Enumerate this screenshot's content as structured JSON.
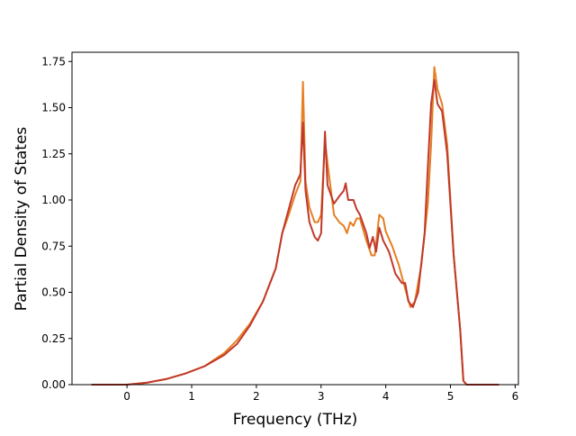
{
  "chart_data": {
    "type": "line",
    "title": "",
    "xlabel": "Frequency (THz)",
    "ylabel": "Partial Density of States",
    "xlim": [
      -0.85,
      6.05
    ],
    "ylim": [
      0,
      1.8
    ],
    "xticks": [
      0,
      1,
      2,
      3,
      4,
      5,
      6
    ],
    "xtick_labels": [
      "0",
      "1",
      "2",
      "3",
      "4",
      "5",
      "6"
    ],
    "yticks": [
      0,
      0.25,
      0.5,
      0.75,
      1.0,
      1.25,
      1.5,
      1.75
    ],
    "ytick_labels": [
      "0.00",
      "0.25",
      "0.50",
      "0.75",
      "1.00",
      "1.25",
      "1.50",
      "1.75"
    ],
    "grid": false,
    "legend": "none",
    "series": [
      {
        "color": "#e67e22",
        "points": [
          [
            -0.55,
            0
          ],
          [
            0,
            0
          ],
          [
            0.3,
            0.01
          ],
          [
            0.6,
            0.03
          ],
          [
            0.9,
            0.06
          ],
          [
            1.2,
            0.1
          ],
          [
            1.5,
            0.17
          ],
          [
            1.7,
            0.24
          ],
          [
            1.9,
            0.33
          ],
          [
            2.1,
            0.45
          ],
          [
            2.3,
            0.63
          ],
          [
            2.4,
            0.82
          ],
          [
            2.5,
            0.92
          ],
          [
            2.6,
            1.03
          ],
          [
            2.68,
            1.1
          ],
          [
            2.72,
            1.64
          ],
          [
            2.76,
            1.1
          ],
          [
            2.82,
            0.96
          ],
          [
            2.9,
            0.88
          ],
          [
            2.95,
            0.88
          ],
          [
            3.0,
            0.92
          ],
          [
            3.06,
            1.32
          ],
          [
            3.1,
            1.2
          ],
          [
            3.2,
            0.92
          ],
          [
            3.28,
            0.88
          ],
          [
            3.35,
            0.86
          ],
          [
            3.4,
            0.82
          ],
          [
            3.45,
            0.88
          ],
          [
            3.5,
            0.86
          ],
          [
            3.55,
            0.9
          ],
          [
            3.6,
            0.9
          ],
          [
            3.7,
            0.78
          ],
          [
            3.78,
            0.7
          ],
          [
            3.83,
            0.7
          ],
          [
            3.9,
            0.92
          ],
          [
            3.96,
            0.9
          ],
          [
            4.0,
            0.83
          ],
          [
            4.1,
            0.75
          ],
          [
            4.2,
            0.65
          ],
          [
            4.3,
            0.52
          ],
          [
            4.38,
            0.42
          ],
          [
            4.45,
            0.45
          ],
          [
            4.55,
            0.65
          ],
          [
            4.65,
            0.98
          ],
          [
            4.7,
            1.3
          ],
          [
            4.75,
            1.72
          ],
          [
            4.8,
            1.6
          ],
          [
            4.87,
            1.52
          ],
          [
            4.95,
            1.3
          ],
          [
            5.05,
            0.7
          ],
          [
            5.15,
            0.3
          ],
          [
            5.2,
            0.02
          ],
          [
            5.25,
            0
          ],
          [
            5.75,
            0
          ]
        ]
      },
      {
        "color": "#c0392b",
        "points": [
          [
            -0.55,
            0
          ],
          [
            0,
            0
          ],
          [
            0.3,
            0.01
          ],
          [
            0.6,
            0.03
          ],
          [
            0.9,
            0.06
          ],
          [
            1.2,
            0.1
          ],
          [
            1.5,
            0.16
          ],
          [
            1.7,
            0.22
          ],
          [
            1.9,
            0.32
          ],
          [
            2.1,
            0.45
          ],
          [
            2.3,
            0.63
          ],
          [
            2.4,
            0.82
          ],
          [
            2.5,
            0.95
          ],
          [
            2.6,
            1.08
          ],
          [
            2.68,
            1.14
          ],
          [
            2.72,
            1.42
          ],
          [
            2.76,
            1.05
          ],
          [
            2.82,
            0.88
          ],
          [
            2.9,
            0.8
          ],
          [
            2.95,
            0.78
          ],
          [
            3.0,
            0.82
          ],
          [
            3.06,
            1.37
          ],
          [
            3.1,
            1.08
          ],
          [
            3.2,
            0.98
          ],
          [
            3.28,
            1.02
          ],
          [
            3.35,
            1.05
          ],
          [
            3.38,
            1.09
          ],
          [
            3.42,
            1.0
          ],
          [
            3.5,
            1.0
          ],
          [
            3.55,
            0.95
          ],
          [
            3.6,
            0.92
          ],
          [
            3.7,
            0.82
          ],
          [
            3.75,
            0.74
          ],
          [
            3.8,
            0.8
          ],
          [
            3.85,
            0.72
          ],
          [
            3.9,
            0.85
          ],
          [
            3.96,
            0.78
          ],
          [
            4.05,
            0.72
          ],
          [
            4.15,
            0.6
          ],
          [
            4.25,
            0.55
          ],
          [
            4.3,
            0.55
          ],
          [
            4.35,
            0.45
          ],
          [
            4.42,
            0.42
          ],
          [
            4.5,
            0.5
          ],
          [
            4.6,
            0.82
          ],
          [
            4.65,
            1.18
          ],
          [
            4.7,
            1.52
          ],
          [
            4.75,
            1.65
          ],
          [
            4.8,
            1.52
          ],
          [
            4.87,
            1.48
          ],
          [
            4.95,
            1.25
          ],
          [
            5.05,
            0.7
          ],
          [
            5.15,
            0.3
          ],
          [
            5.2,
            0.02
          ],
          [
            5.25,
            0
          ],
          [
            5.75,
            0
          ]
        ]
      }
    ]
  }
}
